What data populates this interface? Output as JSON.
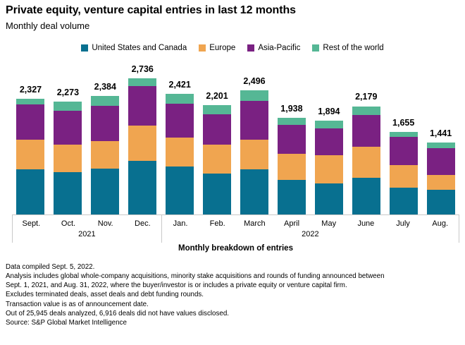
{
  "header": {
    "title": "Private equity, venture capital entries in last 12 months",
    "subtitle": "Monthly deal volume"
  },
  "legend": [
    {
      "label": "United States and Canada",
      "color": "#087090"
    },
    {
      "label": "Europe",
      "color": "#F0A550"
    },
    {
      "label": "Asia-Pacific",
      "color": "#7A2182"
    },
    {
      "label": "Rest of the world",
      "color": "#55B795"
    }
  ],
  "chart_data": {
    "type": "bar",
    "stacked": true,
    "categories": [
      "Sept.",
      "Oct.",
      "Nov.",
      "Dec.",
      "Jan.",
      "Feb.",
      "March",
      "April",
      "May",
      "June",
      "July",
      "Aug."
    ],
    "year_groups": [
      {
        "label": "2021",
        "span": 4
      },
      {
        "label": "2022",
        "span": 8
      }
    ],
    "series": [
      {
        "name": "United States and Canada",
        "color": "#087090",
        "values": [
          907,
          856,
          917,
          1080,
          966,
          817,
          909,
          700,
          630,
          745,
          541,
          501
        ]
      },
      {
        "name": "Europe",
        "color": "#F0A550",
        "values": [
          603,
          555,
          564,
          703,
          583,
          590,
          593,
          517,
          568,
          620,
          455,
          288
        ]
      },
      {
        "name": "Asia-Pacific",
        "color": "#7A2182",
        "values": [
          703,
          678,
          701,
          793,
          682,
          614,
          782,
          588,
          540,
          639,
          569,
          543
        ]
      },
      {
        "name": "Rest of the world",
        "color": "#55B795",
        "values": [
          114,
          184,
          202,
          160,
          190,
          180,
          212,
          133,
          156,
          175,
          90,
          109
        ]
      }
    ],
    "totals": [
      "2,327",
      "2,273",
      "2,384",
      "2,736",
      "2,421",
      "2,201",
      "2,496",
      "1,938",
      "1,894",
      "2,179",
      "1,655",
      "1,441"
    ],
    "xlabel": "Monthly breakdown of entries",
    "ylabel": "",
    "value_axis_hidden": true,
    "legend_position": "top",
    "grid": false
  },
  "footnotes": [
    "Data compiled Sept. 5, 2022.",
    "Analysis includes global whole-company acquisitions, minority stake acquisitions and rounds of funding announced between",
    "Sept. 1, 2021, and Aug. 31, 2022, where the buyer/investor is or includes a private equity or venture capital firm.",
    "Excludes terminated deals, asset deals and debt funding rounds.",
    "Transaction value is as of announcement date.",
    "Out of 25,945 deals analyzed, 6,916 deals did not have values disclosed.",
    "Source: S&P Global Market Intelligence"
  ]
}
